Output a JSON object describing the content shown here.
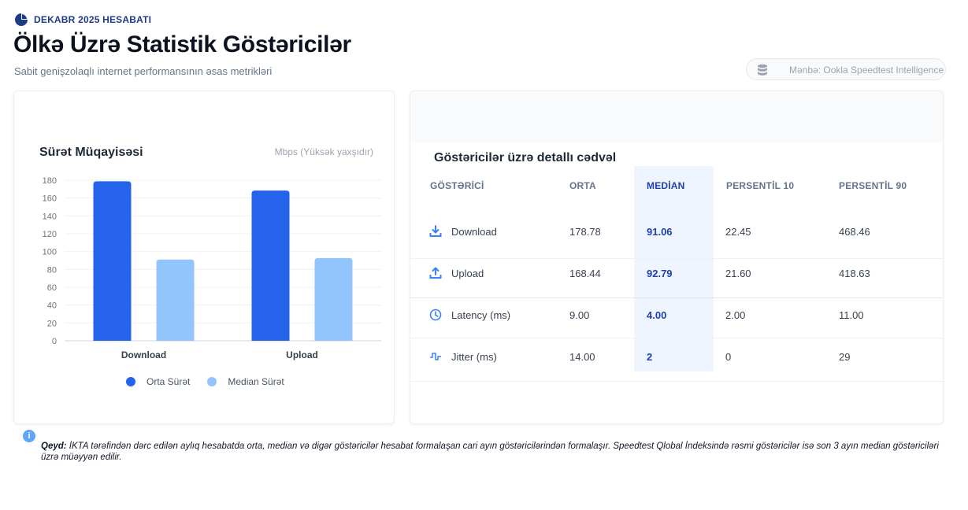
{
  "header": {
    "tag": "DEKABR 2025 HESABATI",
    "title": "Ölkə Üzrə Statistik Göstəricilər",
    "subtitle": "Sabit genişzolaqlı internet performansının əsas metrikləri",
    "source": "Mənbə: Ookla Speedtest Intelligence"
  },
  "chart": {
    "title": "Sürət Müqayisəsi",
    "unit": "Mbps (Yüksək yaxşıdır)"
  },
  "chart_data": {
    "type": "bar",
    "categories": [
      "Download",
      "Upload"
    ],
    "series": [
      {
        "name": "Orta Sürət",
        "values": [
          178.78,
          168.44
        ],
        "color": "#2563eb"
      },
      {
        "name": "Median Sürət",
        "values": [
          91.06,
          92.79
        ],
        "color": "#93c5fd"
      }
    ],
    "ylim": [
      0,
      180
    ],
    "yticks": [
      "0",
      "20",
      "40",
      "60",
      "80",
      "100",
      "120",
      "140",
      "160",
      "180"
    ],
    "grid": true,
    "legend": "bottom"
  },
  "table": {
    "title": "Göstəricilər üzrə detallı cədvəl",
    "headers": [
      "GÖSTƏRİCİ",
      "ORTA",
      "MEDİAN",
      "PERSENTİL 10",
      "PERSENTİL 90"
    ],
    "rows": [
      {
        "icon": "download-icon",
        "label": "Download",
        "orta": "178.78",
        "median": "91.06",
        "p10": "22.45",
        "p90": "468.46"
      },
      {
        "icon": "upload-icon",
        "label": "Upload",
        "orta": "168.44",
        "median": "92.79",
        "p10": "21.60",
        "p90": "418.63"
      },
      {
        "icon": "clock-icon",
        "label": "Latency (ms)",
        "orta": "9.00",
        "median": "4.00",
        "p10": "2.00",
        "p90": "11.00"
      },
      {
        "icon": "pulse-icon",
        "label": "Jitter (ms)",
        "orta": "14.00",
        "median": "2",
        "p10": "0",
        "p90": "29"
      }
    ]
  },
  "note": {
    "label": "Qeyd:",
    "text": " İKTA tərəfindən dərc edilən aylıq hesabatda orta, median və digər göstəricilər hesabat formalaşan cari ayın göstəricilərindən formalaşır. Speedtest Qlobal İndeksində rəsmi göstəricilər isə son 3 ayın median göstəriciləri üzrə müəyyən edilir."
  },
  "colors": {
    "accent": "#2563eb",
    "accent_light": "#93c5fd",
    "median_text": "#1e40af"
  }
}
